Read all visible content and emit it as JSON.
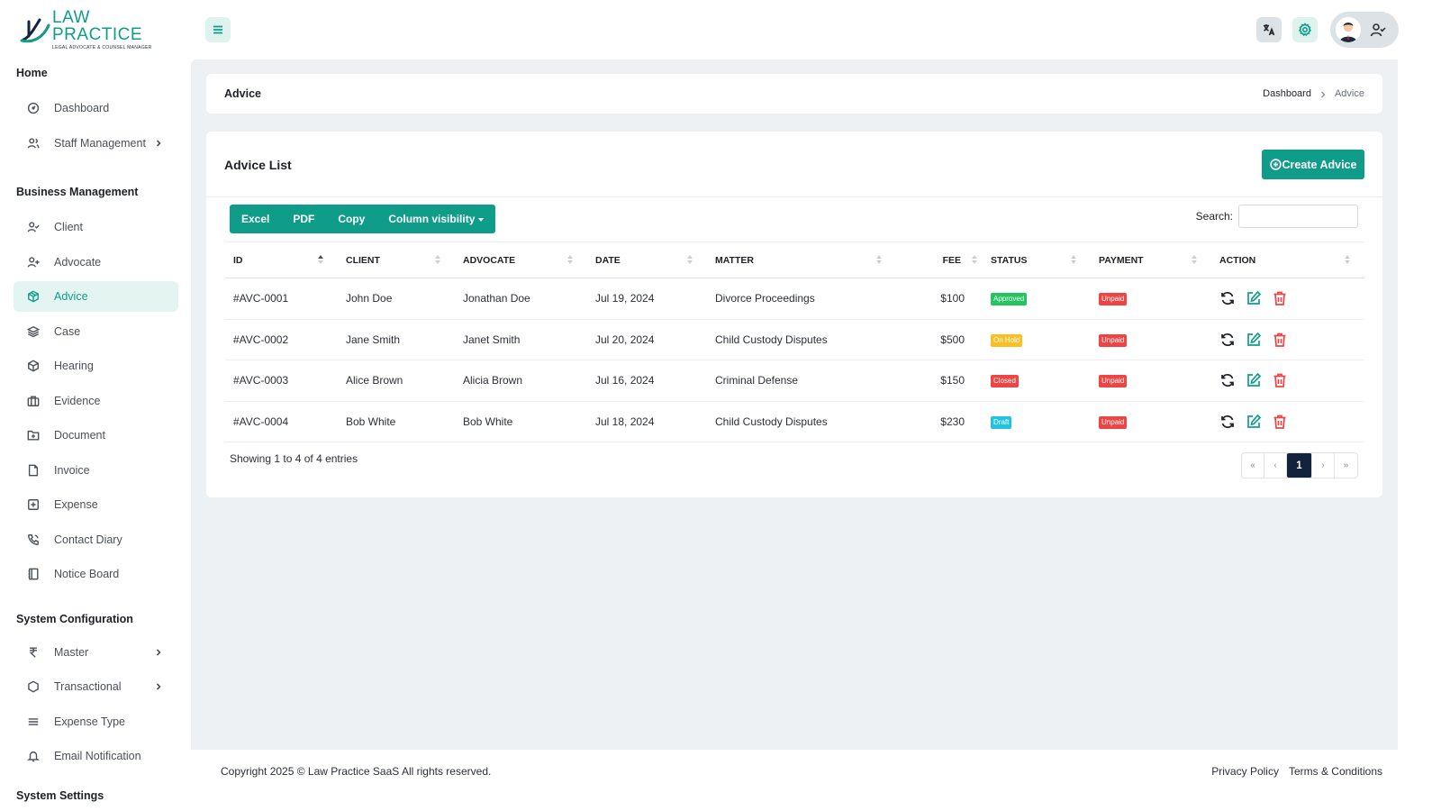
{
  "brand": {
    "title": "LAW PRACTICE",
    "subtitle": "LEGAL ADVOCATE & COUNSEL MANAGER"
  },
  "sidebar": {
    "sections": [
      {
        "heading": "Home",
        "items": [
          {
            "label": "Dashboard",
            "icon": "dashboard-icon"
          },
          {
            "label": "Staff Management",
            "icon": "users-icon",
            "has_children": true
          }
        ]
      },
      {
        "heading": "Business Management",
        "items": [
          {
            "label": "Client",
            "icon": "user-check-icon"
          },
          {
            "label": "Advocate",
            "icon": "user-plus-icon"
          },
          {
            "label": "Advice",
            "icon": "box-icon",
            "active": true
          },
          {
            "label": "Case",
            "icon": "layers-icon"
          },
          {
            "label": "Hearing",
            "icon": "cube-icon"
          },
          {
            "label": "Evidence",
            "icon": "briefcase-icon"
          },
          {
            "label": "Document",
            "icon": "folder-plus-icon"
          },
          {
            "label": "Invoice",
            "icon": "file-icon"
          },
          {
            "label": "Expense",
            "icon": "square-plus-icon"
          },
          {
            "label": "Contact Diary",
            "icon": "phone-icon"
          },
          {
            "label": "Notice Board",
            "icon": "notebook-icon"
          }
        ]
      },
      {
        "heading": "System Configuration",
        "items": [
          {
            "label": "Master",
            "icon": "rupee-icon",
            "has_children": true
          },
          {
            "label": "Transactional",
            "icon": "hexagon-icon",
            "has_children": true
          },
          {
            "label": "Expense Type",
            "icon": "list-icon"
          },
          {
            "label": "Email Notification",
            "icon": "bell-icon"
          }
        ]
      },
      {
        "heading": "System Settings",
        "items": []
      }
    ]
  },
  "topbar": {
    "menu_icon": "hamburger-icon",
    "language_icon": "translate-icon",
    "settings_icon": "gear-icon",
    "user_icon": "user-check-icon"
  },
  "page": {
    "title": "Advice",
    "breadcrumb": {
      "parent": "Dashboard",
      "current": "Advice"
    }
  },
  "list": {
    "title": "Advice List",
    "create_label": "Create Advice",
    "toolbar": [
      "Excel",
      "PDF",
      "Copy",
      "Column visibility"
    ],
    "search_label": "Search:",
    "search_value": "",
    "columns": [
      "ID",
      "CLIENT",
      "ADVOCATE",
      "DATE",
      "MATTER",
      "FEE",
      "STATUS",
      "PAYMENT",
      "ACTION"
    ],
    "rows": [
      {
        "id": "#AVC-0001",
        "client": "John Doe",
        "advocate": "Jonathan Doe",
        "date": "Jul 19, 2024",
        "matter": "Divorce Proceedings",
        "fee": "$100",
        "status": "Approved",
        "status_color": "#22c55e",
        "payment": "Unpaid",
        "payment_color": "#ef4444"
      },
      {
        "id": "#AVC-0002",
        "client": "Jane Smith",
        "advocate": "Janet Smith",
        "date": "Jul 20, 2024",
        "matter": "Child Custody Disputes",
        "fee": "$500",
        "status": "On Hold",
        "status_color": "#fbbf24",
        "payment": "Unpaid",
        "payment_color": "#ef4444"
      },
      {
        "id": "#AVC-0003",
        "client": "Alice Brown",
        "advocate": "Alicia Brown",
        "date": "Jul 16, 2024",
        "matter": "Criminal Defense",
        "fee": "$150",
        "status": "Closed",
        "status_color": "#ef4444",
        "payment": "Unpaid",
        "payment_color": "#ef4444"
      },
      {
        "id": "#AVC-0004",
        "client": "Bob White",
        "advocate": "Bob White",
        "date": "Jul 18, 2024",
        "matter": "Child Custody Disputes",
        "fee": "$230",
        "status": "Draft",
        "status_color": "#22c3e0",
        "payment": "Unpaid",
        "payment_color": "#ef4444"
      }
    ],
    "info": "Showing 1 to 4 of 4 entries",
    "pagination": {
      "first": "«",
      "prev": "‹",
      "current": "1",
      "next": "›",
      "last": "»"
    }
  },
  "footer": {
    "copyright": "Copyright 2025 © Law Practice SaaS All rights reserved.",
    "links": [
      "Privacy Policy",
      "Terms & Conditions"
    ]
  },
  "colors": {
    "accent": "#0f9d8a",
    "accent_soft": "#e4f5f1",
    "page_bg": "#eef1f4",
    "pager_active": "#13233d",
    "delete": "#ef4444"
  }
}
